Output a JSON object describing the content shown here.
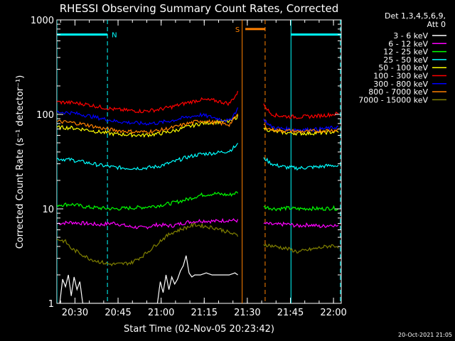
{
  "chart_data": {
    "type": "line",
    "title": "RHESSI Observing Summary Count Rates, Corrected",
    "xlabel": "Start Time (02-Nov-05 20:23:42)",
    "ylabel": "Corrected Count Rate (s⁻¹ detector⁻¹)",
    "yscale": "log",
    "ylim": [
      1,
      1000
    ],
    "xlim_minutes": [
      0,
      99
    ],
    "x_ticks": [
      {
        "label": "20:30",
        "min": 6.3
      },
      {
        "label": "20:45",
        "min": 21.3
      },
      {
        "label": "21:00",
        "min": 36.3
      },
      {
        "label": "21:15",
        "min": 51.3
      },
      {
        "label": "21:30",
        "min": 66.3
      },
      {
        "label": "21:45",
        "min": 81.3
      },
      {
        "label": "22:00",
        "min": 96.3
      }
    ],
    "y_ticks": [
      {
        "label": "1",
        "value": 1
      },
      {
        "label": "10",
        "value": 10
      },
      {
        "label": "100",
        "value": 100
      },
      {
        "label": "1000",
        "value": 1000
      }
    ],
    "legend": {
      "header": [
        "Det 1,3,4,5,6,9,",
        "Att 0"
      ],
      "placement": "top-right"
    },
    "series": [
      {
        "name": "3 - 6 keV",
        "color": "#ffffff",
        "points": [
          [
            1,
            1
          ],
          [
            2,
            1.8
          ],
          [
            3,
            1.5
          ],
          [
            4,
            2
          ],
          [
            5,
            1.2
          ],
          [
            6,
            1.9
          ],
          [
            7,
            1.4
          ],
          [
            8,
            1.7
          ],
          [
            9,
            1
          ],
          [
            14,
            1
          ],
          [
            35,
            1
          ],
          [
            36,
            1.7
          ],
          [
            37,
            1.3
          ],
          [
            38,
            2
          ],
          [
            39,
            1.4
          ],
          [
            40,
            1.9
          ],
          [
            41,
            1.6
          ],
          [
            42,
            1.8
          ],
          [
            43,
            2.2
          ],
          [
            44,
            2.5
          ],
          [
            45,
            3.2
          ],
          [
            46,
            2.1
          ],
          [
            47,
            1.9
          ],
          [
            48,
            2.0
          ],
          [
            50,
            2.0
          ],
          [
            52,
            2.1
          ],
          [
            54,
            2.0
          ],
          [
            56,
            2.0
          ],
          [
            58,
            2.0
          ],
          [
            60,
            2.0
          ],
          [
            62,
            2.1
          ],
          [
            63,
            2.0
          ]
        ]
      },
      {
        "name": "6 - 12 keV",
        "color": "#ff00ff",
        "points": [
          [
            0,
            7
          ],
          [
            5,
            7.2
          ],
          [
            10,
            7
          ],
          [
            15,
            6.8
          ],
          [
            20,
            7.1
          ],
          [
            25,
            6.5
          ],
          [
            30,
            6.3
          ],
          [
            35,
            6.8
          ],
          [
            40,
            6.6
          ],
          [
            45,
            7.2
          ],
          [
            50,
            7.5
          ],
          [
            55,
            7.4
          ],
          [
            60,
            7.6
          ],
          [
            63,
            7.5
          ],
          [
            72,
            7
          ],
          [
            76,
            6.8
          ],
          [
            80,
            6.9
          ],
          [
            84,
            6.6
          ],
          [
            88,
            6.8
          ],
          [
            92,
            6.5
          ],
          [
            96,
            6.8
          ],
          [
            98,
            6.5
          ]
        ]
      },
      {
        "name": "12 - 25 keV",
        "color": "#00ff00",
        "points": [
          [
            0,
            11
          ],
          [
            5,
            11.2
          ],
          [
            10,
            10.5
          ],
          [
            15,
            10.2
          ],
          [
            20,
            10
          ],
          [
            25,
            10.2
          ],
          [
            30,
            10.4
          ],
          [
            35,
            10.8
          ],
          [
            40,
            11.5
          ],
          [
            45,
            12.5
          ],
          [
            50,
            14
          ],
          [
            55,
            14.5
          ],
          [
            60,
            14
          ],
          [
            63,
            15
          ],
          [
            72,
            10.5
          ],
          [
            76,
            10
          ],
          [
            80,
            10.2
          ],
          [
            84,
            10
          ],
          [
            88,
            10.1
          ],
          [
            92,
            10
          ],
          [
            96,
            10.2
          ],
          [
            98,
            10
          ]
        ]
      },
      {
        "name": "25 - 50 keV",
        "color": "#00ffff",
        "points": [
          [
            0,
            34
          ],
          [
            5,
            33
          ],
          [
            10,
            31
          ],
          [
            15,
            29
          ],
          [
            20,
            27.5
          ],
          [
            25,
            27
          ],
          [
            30,
            27
          ],
          [
            35,
            28
          ],
          [
            40,
            31
          ],
          [
            45,
            35
          ],
          [
            50,
            38
          ],
          [
            55,
            39
          ],
          [
            60,
            41
          ],
          [
            63,
            48
          ],
          [
            72,
            35
          ],
          [
            74,
            31
          ],
          [
            76,
            29
          ],
          [
            80,
            27.5
          ],
          [
            84,
            27
          ],
          [
            88,
            27.5
          ],
          [
            92,
            28
          ],
          [
            96,
            29
          ],
          [
            98,
            28
          ]
        ]
      },
      {
        "name": "50 - 100 keV",
        "color": "#ffff00",
        "points": [
          [
            0,
            73
          ],
          [
            5,
            72
          ],
          [
            10,
            69
          ],
          [
            15,
            65
          ],
          [
            20,
            62
          ],
          [
            25,
            61
          ],
          [
            30,
            60
          ],
          [
            35,
            62
          ],
          [
            40,
            66
          ],
          [
            45,
            73
          ],
          [
            50,
            80
          ],
          [
            55,
            83
          ],
          [
            60,
            84
          ],
          [
            63,
            95
          ],
          [
            72,
            72
          ],
          [
            74,
            68
          ],
          [
            76,
            66
          ],
          [
            80,
            64
          ],
          [
            84,
            63
          ],
          [
            88,
            63
          ],
          [
            92,
            64
          ],
          [
            96,
            65
          ],
          [
            98,
            66
          ]
        ]
      },
      {
        "name": "100 - 300 keV",
        "color": "#ff0000",
        "points": [
          [
            0,
            135
          ],
          [
            5,
            133
          ],
          [
            10,
            128
          ],
          [
            15,
            120
          ],
          [
            20,
            113
          ],
          [
            25,
            110
          ],
          [
            30,
            108
          ],
          [
            35,
            112
          ],
          [
            40,
            120
          ],
          [
            45,
            132
          ],
          [
            50,
            143
          ],
          [
            55,
            140
          ],
          [
            60,
            130
          ],
          [
            63,
            170
          ],
          [
            72,
            130
          ],
          [
            74,
            105
          ],
          [
            76,
            98
          ],
          [
            80,
            95
          ],
          [
            84,
            94
          ],
          [
            88,
            95
          ],
          [
            92,
            97
          ],
          [
            96,
            100
          ],
          [
            98,
            102
          ]
        ]
      },
      {
        "name": "300 - 800 keV",
        "color": "#0000ff",
        "points": [
          [
            0,
            106
          ],
          [
            5,
            104
          ],
          [
            10,
            98
          ],
          [
            15,
            91
          ],
          [
            20,
            85
          ],
          [
            25,
            82
          ],
          [
            30,
            80
          ],
          [
            35,
            81
          ],
          [
            40,
            86
          ],
          [
            45,
            93
          ],
          [
            50,
            99
          ],
          [
            55,
            92
          ],
          [
            60,
            85
          ],
          [
            63,
            115
          ],
          [
            72,
            90
          ],
          [
            74,
            76
          ],
          [
            76,
            72
          ],
          [
            80,
            70
          ],
          [
            84,
            69
          ],
          [
            88,
            69
          ],
          [
            92,
            70
          ],
          [
            96,
            72
          ],
          [
            98,
            74
          ]
        ]
      },
      {
        "name": "800 - 7000 keV",
        "color": "#ff8000",
        "points": [
          [
            0,
            84
          ],
          [
            5,
            82
          ],
          [
            10,
            78
          ],
          [
            15,
            72
          ],
          [
            20,
            68
          ],
          [
            25,
            66
          ],
          [
            30,
            65
          ],
          [
            35,
            67
          ],
          [
            40,
            72
          ],
          [
            45,
            79
          ],
          [
            50,
            86
          ],
          [
            55,
            82
          ],
          [
            60,
            78
          ],
          [
            63,
            100
          ],
          [
            72,
            78
          ],
          [
            74,
            70
          ],
          [
            76,
            68
          ],
          [
            80,
            67
          ],
          [
            84,
            66
          ],
          [
            88,
            66
          ],
          [
            92,
            67
          ],
          [
            96,
            68
          ],
          [
            98,
            69
          ]
        ]
      },
      {
        "name": "7000 - 15000 keV",
        "color": "#808000",
        "points": [
          [
            0,
            4.8
          ],
          [
            3,
            4.5
          ],
          [
            5,
            3.8
          ],
          [
            8,
            3.4
          ],
          [
            11,
            3.0
          ],
          [
            14,
            2.8
          ],
          [
            18,
            2.6
          ],
          [
            22,
            2.6
          ],
          [
            26,
            2.7
          ],
          [
            30,
            3.2
          ],
          [
            33,
            3.8
          ],
          [
            36,
            4.6
          ],
          [
            40,
            5.6
          ],
          [
            44,
            6.2
          ],
          [
            48,
            6.8
          ],
          [
            52,
            6.5
          ],
          [
            56,
            6.2
          ],
          [
            60,
            5.6
          ],
          [
            63,
            5.2
          ],
          [
            72,
            4.2
          ],
          [
            76,
            4.0
          ],
          [
            80,
            3.8
          ],
          [
            84,
            3.5
          ],
          [
            88,
            3.7
          ],
          [
            92,
            3.9
          ],
          [
            96,
            4.1
          ],
          [
            98,
            4.0
          ]
        ]
      }
    ],
    "annotations": [
      {
        "label": "N",
        "color": "#00ffff",
        "y": 700,
        "x_range": [
          0,
          17.6
        ]
      },
      {
        "label": "",
        "color": "#00ffff",
        "y": 700,
        "x_range": [
          81.5,
          99
        ]
      },
      {
        "label": "S",
        "color": "#ff8000",
        "y": 800,
        "x_range": [
          65.6,
          72.5
        ]
      }
    ],
    "vertical_lines": [
      {
        "x": 0,
        "color": "#00ffff",
        "style": "solid"
      },
      {
        "x": 17.6,
        "color": "#00ffff",
        "style": "dashed"
      },
      {
        "x": 64.5,
        "color": "#ff8000",
        "style": "solid"
      },
      {
        "x": 72.5,
        "color": "#ff8000",
        "style": "dashed"
      },
      {
        "x": 81.5,
        "color": "#00ffff",
        "style": "solid"
      },
      {
        "x": 98.7,
        "color": "#00ffff",
        "style": "dashed"
      }
    ],
    "gaps": [
      [
        64,
        72
      ]
    ]
  },
  "footer": {
    "timestamp": "20-Oct-2021 21:05"
  }
}
